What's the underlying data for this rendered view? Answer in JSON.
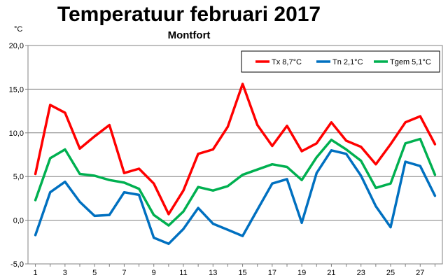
{
  "chart_data": {
    "type": "line",
    "title": "Temperatuur februari 2017",
    "subtitle": "Montfort",
    "ylabel": "°C",
    "xlabel": "",
    "ylim": [
      -5,
      20
    ],
    "xlim": [
      0.5,
      28.5
    ],
    "y_ticks": [
      "20,0",
      "15,0",
      "10,0",
      "5,0",
      "0,0",
      "-5,0"
    ],
    "x_ticks": [
      "1",
      "3",
      "5",
      "7",
      "9",
      "11",
      "13",
      "15",
      "17",
      "19",
      "21",
      "23",
      "25",
      "27"
    ],
    "grid": "horizontal",
    "legend_position": "top-right",
    "x": [
      1,
      2,
      3,
      4,
      5,
      6,
      7,
      8,
      9,
      10,
      11,
      12,
      13,
      14,
      15,
      16,
      17,
      18,
      19,
      20,
      21,
      22,
      23,
      24,
      25,
      26,
      27,
      28
    ],
    "series": [
      {
        "name": "Tx 8,7°C",
        "color": "#ff0000",
        "values": [
          5.3,
          13.2,
          12.3,
          8.2,
          9.6,
          10.9,
          5.4,
          5.9,
          4.2,
          0.7,
          3.4,
          7.6,
          8.1,
          10.7,
          15.6,
          10.9,
          8.5,
          10.8,
          7.9,
          8.8,
          11.2,
          9.1,
          8.4,
          6.4,
          8.7,
          11.2,
          11.9,
          8.7
        ]
      },
      {
        "name": "Tn 2,1°C",
        "color": "#0070c0",
        "values": [
          -1.7,
          3.2,
          4.4,
          2.1,
          0.5,
          0.6,
          3.2,
          2.9,
          -2.0,
          -2.7,
          -1.0,
          1.4,
          -0.4,
          -1.1,
          -1.8,
          1.2,
          4.2,
          4.7,
          -0.3,
          5.4,
          8.0,
          7.6,
          5.1,
          1.6,
          -0.8,
          6.7,
          6.2,
          2.8
        ]
      },
      {
        "name": "Tgem 5,1°C",
        "color": "#00b050",
        "values": [
          2.3,
          7.1,
          8.1,
          5.3,
          5.1,
          4.6,
          4.3,
          3.6,
          0.6,
          -0.6,
          1.0,
          3.8,
          3.4,
          3.9,
          5.2,
          5.8,
          6.4,
          6.1,
          4.6,
          7.2,
          9.2,
          8.1,
          6.8,
          3.7,
          4.2,
          8.8,
          9.3,
          5.2
        ]
      }
    ]
  }
}
